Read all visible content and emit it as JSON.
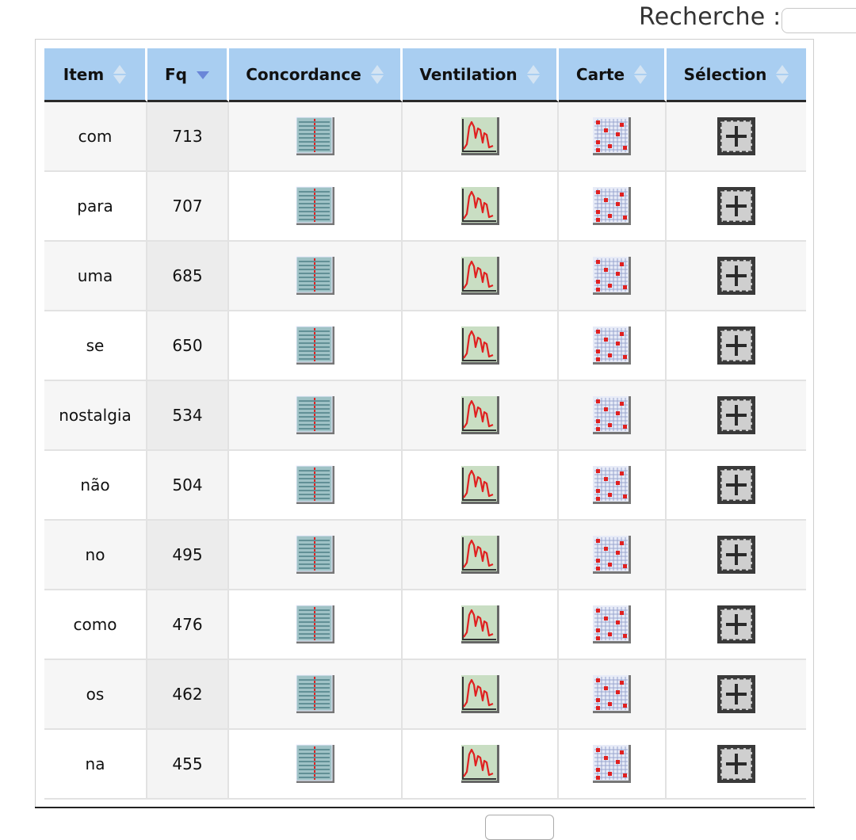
{
  "search": {
    "label": "Recherche :",
    "value": "",
    "placeholder": ""
  },
  "table": {
    "headers": {
      "item": "Item",
      "fq": "Fq",
      "concordance": "Concordance",
      "ventilation": "Ventilation",
      "carte": "Carte",
      "selection": "Sélection"
    },
    "sort": {
      "column": "Fq",
      "direction": "descending"
    },
    "rows": [
      {
        "item": "com",
        "fq": "713"
      },
      {
        "item": "para",
        "fq": "707"
      },
      {
        "item": "uma",
        "fq": "685"
      },
      {
        "item": "se",
        "fq": "650"
      },
      {
        "item": "nostalgia",
        "fq": "534"
      },
      {
        "item": "não",
        "fq": "504"
      },
      {
        "item": "no",
        "fq": "495"
      },
      {
        "item": "como",
        "fq": "476"
      },
      {
        "item": "os",
        "fq": "462"
      },
      {
        "item": "na",
        "fq": "455"
      }
    ],
    "row_icons": {
      "concordance": "concordance-icon",
      "ventilation": "ventilation-chart-icon",
      "carte": "map-grid-icon",
      "selection": "add-selection-icon"
    }
  },
  "colors": {
    "header_bg": "#a9cef1",
    "sort_active": "#6a86d8",
    "icon_red": "#e02020"
  }
}
